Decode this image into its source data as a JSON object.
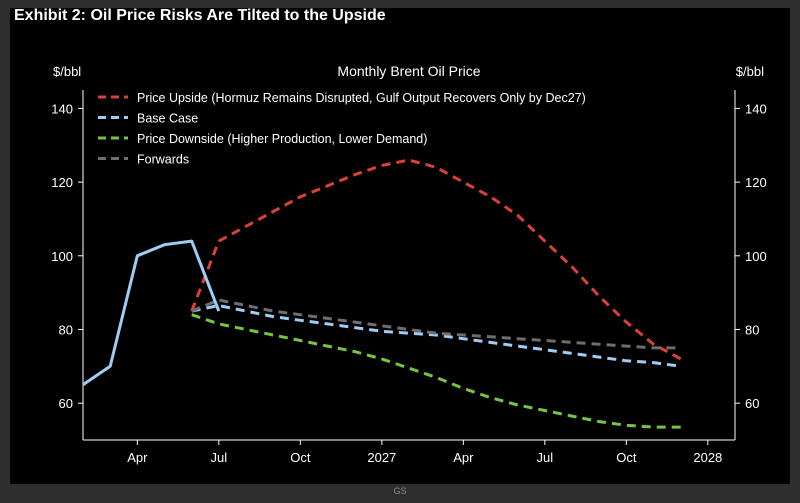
{
  "exhibit_title": "Exhibit 2: Oil Price Risks Are Tilted to the Upside",
  "credit": "GS",
  "chart_data": {
    "type": "line",
    "title": "Monthly Brent Oil Price",
    "ylabel_left": "$/bbl",
    "ylabel_right": "$/bbl",
    "ylim": [
      50,
      145
    ],
    "yticks": [
      60,
      80,
      100,
      120,
      140
    ],
    "xlim": [
      "2026-02",
      "2028-02"
    ],
    "xticks": [
      {
        "date": "2026-04",
        "label": "Apr"
      },
      {
        "date": "2026-07",
        "label": "Jul"
      },
      {
        "date": "2026-10",
        "label": "Oct"
      },
      {
        "date": "2027-01",
        "label": "2027"
      },
      {
        "date": "2027-04",
        "label": "Apr"
      },
      {
        "date": "2027-07",
        "label": "Jul"
      },
      {
        "date": "2027-10",
        "label": "Oct"
      },
      {
        "date": "2028-01",
        "label": "2028"
      }
    ],
    "grid": false,
    "legend_position": "top-left",
    "series": [
      {
        "name": "Price Upside (Hormuz Remains Disrupted, Gulf Output Recovers Only by Dec27)",
        "color": "#d9413a",
        "style": "dashed",
        "points": [
          [
            "2026-06",
            85
          ],
          [
            "2026-07",
            104
          ],
          [
            "2026-08",
            108
          ],
          [
            "2026-09",
            112
          ],
          [
            "2026-10",
            116
          ],
          [
            "2026-11",
            119
          ],
          [
            "2026-12",
            122
          ],
          [
            "2027-01",
            124.5
          ],
          [
            "2027-02",
            126
          ],
          [
            "2027-03",
            124
          ],
          [
            "2027-04",
            120
          ],
          [
            "2027-05",
            116
          ],
          [
            "2027-06",
            111
          ],
          [
            "2027-07",
            104
          ],
          [
            "2027-08",
            97
          ],
          [
            "2027-09",
            89
          ],
          [
            "2027-10",
            82
          ],
          [
            "2027-11",
            76
          ],
          [
            "2027-12",
            72
          ]
        ]
      },
      {
        "name": "Base Case",
        "color": "#9fcdf2",
        "style": "dashed",
        "points": [
          [
            "2026-06",
            85
          ],
          [
            "2026-07",
            86.5
          ],
          [
            "2026-08",
            85
          ],
          [
            "2026-09",
            83.5
          ],
          [
            "2026-10",
            82.5
          ],
          [
            "2026-11",
            81.5
          ],
          [
            "2026-12",
            80.5
          ],
          [
            "2027-01",
            79.5
          ],
          [
            "2027-02",
            79
          ],
          [
            "2027-03",
            78.5
          ],
          [
            "2027-04",
            77.5
          ],
          [
            "2027-05",
            76.5
          ],
          [
            "2027-06",
            75.5
          ],
          [
            "2027-07",
            74.5
          ],
          [
            "2027-08",
            73.5
          ],
          [
            "2027-09",
            72.5
          ],
          [
            "2027-10",
            71.5
          ],
          [
            "2027-11",
            71
          ],
          [
            "2027-12",
            70
          ]
        ]
      },
      {
        "name": "Price Downside (Higher Production, Lower Demand)",
        "color": "#76c442",
        "style": "dashed",
        "points": [
          [
            "2026-06",
            84
          ],
          [
            "2026-07",
            81.5
          ],
          [
            "2026-08",
            80
          ],
          [
            "2026-09",
            78.5
          ],
          [
            "2026-10",
            77
          ],
          [
            "2026-11",
            75.5
          ],
          [
            "2026-12",
            74
          ],
          [
            "2027-01",
            72
          ],
          [
            "2027-02",
            69.5
          ],
          [
            "2027-03",
            67
          ],
          [
            "2027-04",
            64
          ],
          [
            "2027-05",
            61.5
          ],
          [
            "2027-06",
            59.5
          ],
          [
            "2027-07",
            58
          ],
          [
            "2027-08",
            56.5
          ],
          [
            "2027-09",
            55
          ],
          [
            "2027-10",
            54
          ],
          [
            "2027-11",
            53.5
          ],
          [
            "2027-12",
            53.5
          ]
        ]
      },
      {
        "name": "Forwards",
        "color": "#6e6e6e",
        "style": "dashed",
        "points": [
          [
            "2026-06",
            85
          ],
          [
            "2026-07",
            88
          ],
          [
            "2026-08",
            86.5
          ],
          [
            "2026-09",
            85
          ],
          [
            "2026-10",
            84
          ],
          [
            "2026-11",
            83
          ],
          [
            "2026-12",
            82
          ],
          [
            "2027-01",
            81
          ],
          [
            "2027-02",
            80
          ],
          [
            "2027-03",
            79
          ],
          [
            "2027-04",
            78.5
          ],
          [
            "2027-05",
            78
          ],
          [
            "2027-06",
            77.5
          ],
          [
            "2027-07",
            77
          ],
          [
            "2027-08",
            76.5
          ],
          [
            "2027-09",
            76
          ],
          [
            "2027-10",
            75.5
          ],
          [
            "2027-11",
            75
          ],
          [
            "2027-12",
            75
          ]
        ]
      },
      {
        "name": "",
        "color": "#9fcdf2",
        "style": "solid",
        "points": [
          [
            "2026-02",
            65
          ],
          [
            "2026-03",
            70
          ],
          [
            "2026-04",
            100
          ],
          [
            "2026-05",
            103
          ],
          [
            "2026-06",
            104
          ],
          [
            "2026-07",
            85
          ]
        ]
      }
    ],
    "legend": [
      {
        "label": "Price Upside (Hormuz Remains Disrupted, Gulf Output Recovers Only by Dec27)",
        "color": "#d9413a"
      },
      {
        "label": "Base Case",
        "color": "#9fcdf2"
      },
      {
        "label": "Price Downside (Higher Production, Lower Demand)",
        "color": "#76c442"
      },
      {
        "label": "Forwards",
        "color": "#6e6e6e"
      }
    ]
  }
}
